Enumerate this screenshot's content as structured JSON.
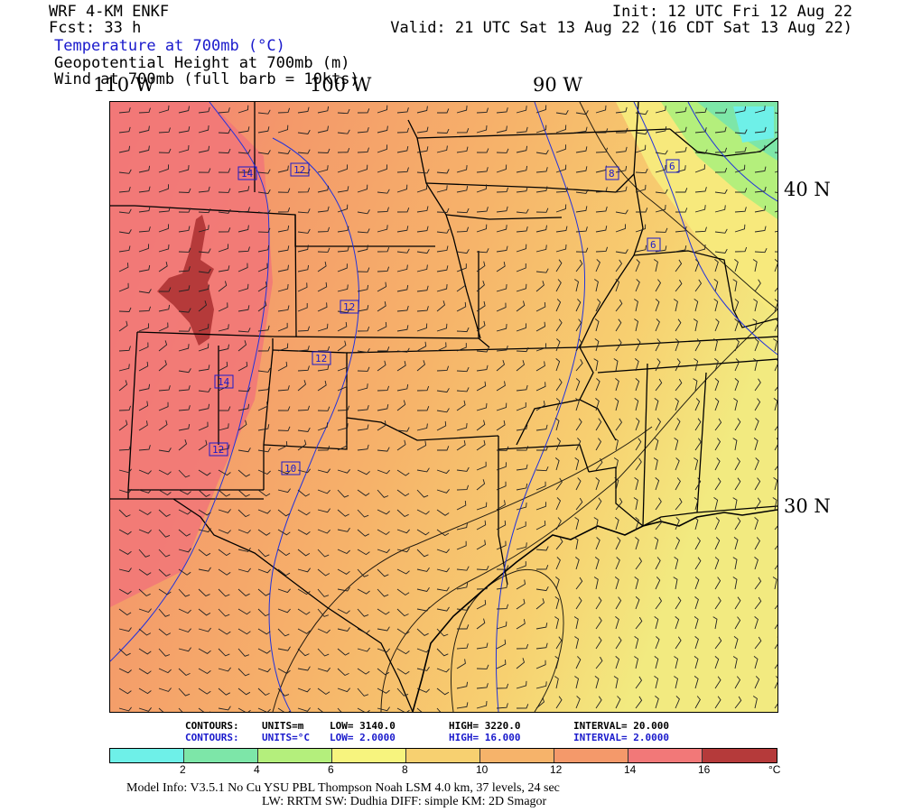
{
  "header": {
    "model": "WRF 4-KM ENKF",
    "fcst": "Fcst:   33 h",
    "init": "Init: 12 UTC Fri 12 Aug 22",
    "valid": "Valid: 21 UTC Sat 13 Aug 22 (16 CDT Sat 13 Aug 22)",
    "field_temp": "Temperature at 700mb (°C)",
    "field_height": "Geopotential Height at 700mb (m)",
    "field_wind": "Wind at 700mb (full barb = 10kts)"
  },
  "axes": {
    "lon_110": "110 W",
    "lon_100": "100 W",
    "lon_90": "90 W",
    "lat_40": "40 N",
    "lat_30": "30 N"
  },
  "contour_labels": [
    "14",
    "12",
    "8",
    "6",
    "6",
    "12",
    "12",
    "14",
    "12",
    "10"
  ],
  "stats": {
    "height": {
      "name": "CONTOURS:",
      "units": "UNITS=m",
      "low": "LOW=   3140.0",
      "high": "HIGH=   3220.0",
      "interval": "INTERVAL=    20.000"
    },
    "temp": {
      "name": "CONTOURS:",
      "units": "UNITS=°C",
      "low": "LOW=   2.0000",
      "high": "HIGH=   16.000",
      "interval": "INTERVAL=    2.0000"
    }
  },
  "colorbar": {
    "colors": [
      "#6ef0e8",
      "#7de6a8",
      "#b4ef7c",
      "#f7f47e",
      "#f7d070",
      "#f6b36a",
      "#f4996a",
      "#f27878",
      "#b53a3a"
    ],
    "ticks": [
      "2",
      "4",
      "6",
      "8",
      "10",
      "12",
      "14",
      "16"
    ],
    "unit": "°C"
  },
  "footer": {
    "line1": "Model Info: V3.5.1    No Cu    YSU PBL   Thompson      Noah LSM   4.0 km,   37 levels,     24 sec",
    "line2": "LW: RRTM  SW: Dudhia   DIFF: simple  KM: 2D Smagor"
  }
}
